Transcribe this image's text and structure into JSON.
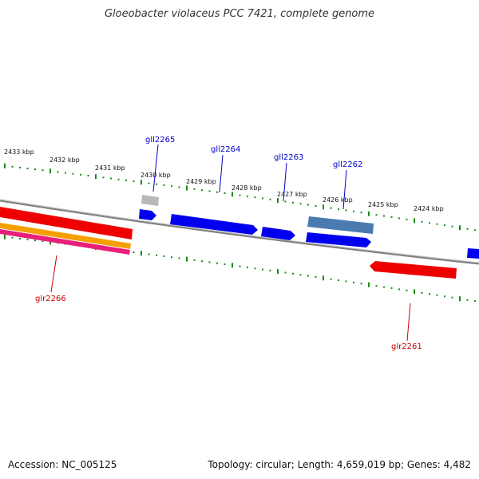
{
  "title": "Gloeobacter violaceus PCC 7421, complete genome",
  "footer": {
    "accession": "Accession: NC_005125",
    "summary": "Topology: circular; Length: 4,659,019 bp; Genes: 4,482"
  },
  "colors": {
    "backbone": "#7f7f7f",
    "ticks": "#1a8a1a",
    "forward_label": "#0000cc",
    "reverse_label": "#cc0000",
    "leader_forward": "#0000cc",
    "leader_reverse": "#cc0000"
  },
  "scale_labels": [
    "2433 kbp",
    "2432 kbp",
    "2431 kbp",
    "2430 kbp",
    "2429 kbp",
    "2428 kbp",
    "2427 kbp",
    "2426 kbp",
    "2425 kbp",
    "2424 kbp"
  ],
  "genes": [
    {
      "label": "gll2265",
      "strand": "forward"
    },
    {
      "label": "gll2264",
      "strand": "forward"
    },
    {
      "label": "gll2263",
      "strand": "forward"
    },
    {
      "label": "gll2262",
      "strand": "forward"
    },
    {
      "label": "glr2266",
      "strand": "reverse"
    },
    {
      "label": "glr2261",
      "strand": "reverse"
    }
  ],
  "feature_colors": {
    "blue": "#0000ee",
    "steel": "#4a7ab0",
    "gray": "#b0b0b0",
    "red": "#ee0000",
    "orange": "#f5a000",
    "pink": "#e8207a"
  }
}
